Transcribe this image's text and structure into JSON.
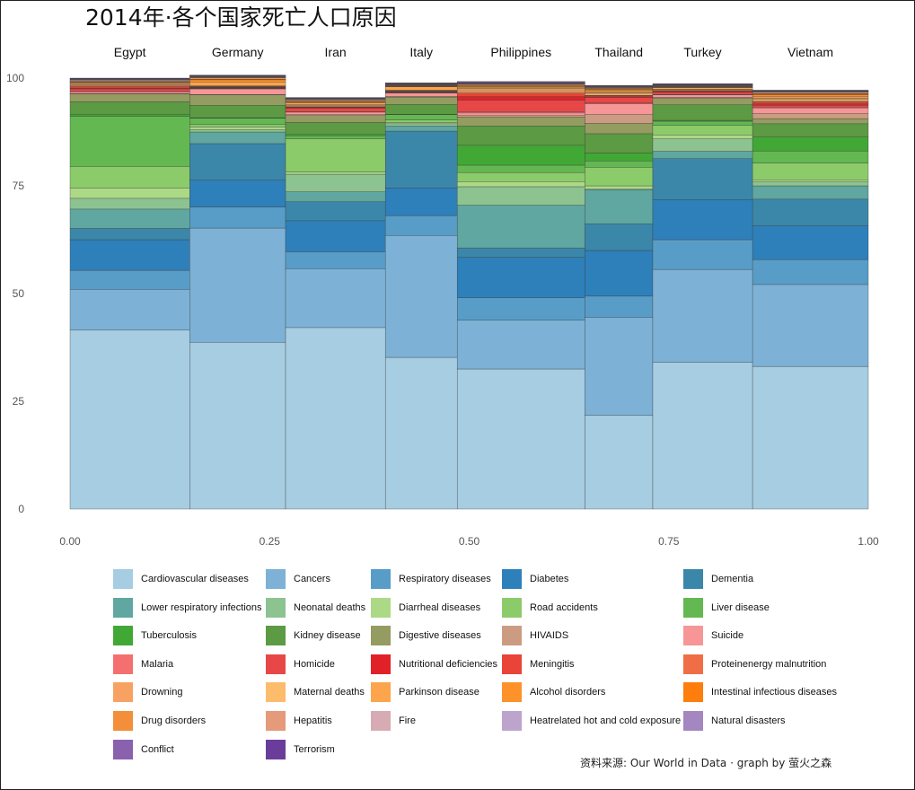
{
  "title": "2014年·各个国家死亡人口原因",
  "caption": "资料来源: Our World in Data · graph by 萤火之森",
  "chart_data": {
    "type": "bar",
    "subtype": "stacked-marimekko",
    "title": "2014年·各个国家死亡人口原因",
    "xlabel": "",
    "ylabel": "",
    "xlim": [
      0,
      1
    ],
    "ylim": [
      0,
      100
    ],
    "x_ticks": [
      "0.00",
      "0.25",
      "0.50",
      "0.75",
      "1.00"
    ],
    "y_ticks": [
      "0",
      "25",
      "50",
      "75",
      "100"
    ],
    "grid": false,
    "legend_position": "bottom",
    "categories": [
      "Egypt",
      "Germany",
      "Iran",
      "Italy",
      "Philippines",
      "Thailand",
      "Turkey",
      "Vietnam"
    ],
    "widths": [
      0.15,
      0.12,
      0.125,
      0.09,
      0.16,
      0.085,
      0.125,
      0.145
    ],
    "series": [
      {
        "name": "Cardiovascular diseases",
        "color": "#a6cde2",
        "values": [
          41.5,
          38.7,
          42.1,
          35.2,
          32.5,
          21.7,
          34.0,
          33.1
        ]
      },
      {
        "name": "Cancers",
        "color": "#7db2d6",
        "values": [
          9.5,
          26.5,
          13.7,
          28.3,
          11.3,
          22.8,
          21.6,
          19.0
        ]
      },
      {
        "name": "Respiratory diseases",
        "color": "#589dc7",
        "values": [
          4.4,
          4.9,
          3.9,
          4.6,
          5.2,
          4.9,
          6.9,
          5.8
        ]
      },
      {
        "name": "Diabetes",
        "color": "#2e80ba",
        "values": [
          7.1,
          6.2,
          7.2,
          6.4,
          9.4,
          10.6,
          9.3,
          7.8
        ]
      },
      {
        "name": "Dementia",
        "color": "#3b87a9",
        "values": [
          2.6,
          8.5,
          4.4,
          13.2,
          2.2,
          6.2,
          9.5,
          6.2
        ]
      },
      {
        "name": "Lower respiratory infections",
        "color": "#5fa7a0",
        "values": [
          4.5,
          2.7,
          2.3,
          1.2,
          9.9,
          7.9,
          1.7,
          3.1
        ]
      },
      {
        "name": "Neonatal deaths",
        "color": "#8cc391",
        "values": [
          2.5,
          0.5,
          4.1,
          0.5,
          4.3,
          0.1,
          2.9,
          0.9
        ]
      },
      {
        "name": "Diarrheal diseases",
        "color": "#acd986",
        "values": [
          2.4,
          0.6,
          0.5,
          0.3,
          1.2,
          0.8,
          0.9,
          0.5
        ]
      },
      {
        "name": "Road accidents",
        "color": "#8ccb6a",
        "values": [
          5.0,
          0.6,
          7.7,
          0.6,
          2.1,
          4.3,
          2.2,
          3.9
        ]
      },
      {
        "name": "Liver disease",
        "color": "#63b851",
        "values": [
          11.6,
          1.5,
          0.7,
          1.2,
          1.7,
          1.5,
          1.0,
          2.8
        ]
      },
      {
        "name": "Tuberculosis",
        "color": "#42a835",
        "values": [
          0.4,
          0.1,
          0.3,
          0.1,
          4.6,
          1.8,
          0.2,
          3.2
        ]
      },
      {
        "name": "Kidney disease",
        "color": "#5c9a43",
        "values": [
          3.0,
          2.9,
          2.8,
          2.3,
          4.5,
          4.5,
          3.6,
          3.1
        ]
      },
      {
        "name": "Digestive diseases",
        "color": "#949c61",
        "values": [
          1.8,
          2.4,
          1.6,
          1.7,
          2.1,
          2.4,
          1.6,
          1.2
        ]
      },
      {
        "name": "HIVAIDS",
        "color": "#cc9c82",
        "values": [
          0.1,
          0.1,
          0.2,
          0.2,
          0.3,
          2.1,
          0.1,
          1.2
        ]
      },
      {
        "name": "Suicide",
        "color": "#f79696",
        "values": [
          0.4,
          1.3,
          0.6,
          0.7,
          0.6,
          2.4,
          0.6,
          1.3
        ]
      },
      {
        "name": "Malaria",
        "color": "#f47070",
        "values": [
          0.1,
          0.1,
          0.1,
          0.1,
          0.3,
          0.2,
          0.1,
          0.2
        ]
      },
      {
        "name": "Homicide",
        "color": "#e84747",
        "values": [
          0.6,
          0.1,
          0.8,
          0.1,
          2.7,
          1.3,
          0.5,
          0.4
        ]
      },
      {
        "name": "Nutritional deficiencies",
        "color": "#e12128",
        "values": [
          0.2,
          0.1,
          0.2,
          0.1,
          0.8,
          0.2,
          0.1,
          0.3
        ]
      },
      {
        "name": "Meningitis",
        "color": "#e94437",
        "values": [
          0.3,
          0.1,
          0.1,
          0.1,
          0.6,
          0.2,
          0.2,
          0.4
        ]
      },
      {
        "name": "Proteinenergy malnutrition",
        "color": "#f06e45",
        "values": [
          0.2,
          0.1,
          0.1,
          0.1,
          0.4,
          0.1,
          0.1,
          0.2
        ]
      },
      {
        "name": "Drowning",
        "color": "#f7a263",
        "values": [
          0.3,
          0.1,
          0.3,
          0.1,
          0.6,
          0.5,
          0.2,
          0.6
        ]
      },
      {
        "name": "Maternal deaths",
        "color": "#fdbb6c",
        "values": [
          0.1,
          0.1,
          0.1,
          0.1,
          0.3,
          0.1,
          0.1,
          0.2
        ]
      },
      {
        "name": "Parkinson disease",
        "color": "#fca54c",
        "values": [
          0.3,
          0.9,
          0.5,
          0.8,
          0.3,
          0.4,
          0.4,
          0.4
        ]
      },
      {
        "name": "Alcohol disorders",
        "color": "#fd922b",
        "values": [
          0.1,
          0.5,
          0.1,
          0.1,
          0.2,
          0.3,
          0.1,
          0.3
        ]
      },
      {
        "name": "Intestinal infectious diseases",
        "color": "#fd7e0c",
        "values": [
          0.1,
          0.1,
          0.1,
          0.1,
          0.2,
          0.2,
          0.1,
          0.2
        ]
      },
      {
        "name": "Drug disorders",
        "color": "#f38f3b",
        "values": [
          0.1,
          0.4,
          0.3,
          0.1,
          0.1,
          0.1,
          0.1,
          0.1
        ]
      },
      {
        "name": "Hepatitis",
        "color": "#e59a7a",
        "values": [
          0.2,
          0.1,
          0.1,
          0.1,
          0.2,
          0.2,
          0.1,
          0.3
        ]
      },
      {
        "name": "Fire",
        "color": "#d7abb3",
        "values": [
          0.2,
          0.1,
          0.2,
          0.1,
          0.1,
          0.1,
          0.1,
          0.1
        ]
      },
      {
        "name": "Heatrelated hot and cold exposure",
        "color": "#bca4cd",
        "values": [
          0.1,
          0.1,
          0.1,
          0.1,
          0.1,
          0.1,
          0.1,
          0.1
        ]
      },
      {
        "name": "Natural disasters",
        "color": "#a486c0",
        "values": [
          0.1,
          0.1,
          0.1,
          0.1,
          0.1,
          0.1,
          0.1,
          0.1
        ]
      },
      {
        "name": "Conflict",
        "color": "#8a61ad",
        "values": [
          0.1,
          0.1,
          0.1,
          0.1,
          0.2,
          0.1,
          0.1,
          0.1
        ]
      },
      {
        "name": "Terrorism",
        "color": "#6a3d9a",
        "values": [
          0.1,
          0.1,
          0.1,
          0.1,
          0.1,
          0.1,
          0.1,
          0.1
        ]
      }
    ]
  }
}
